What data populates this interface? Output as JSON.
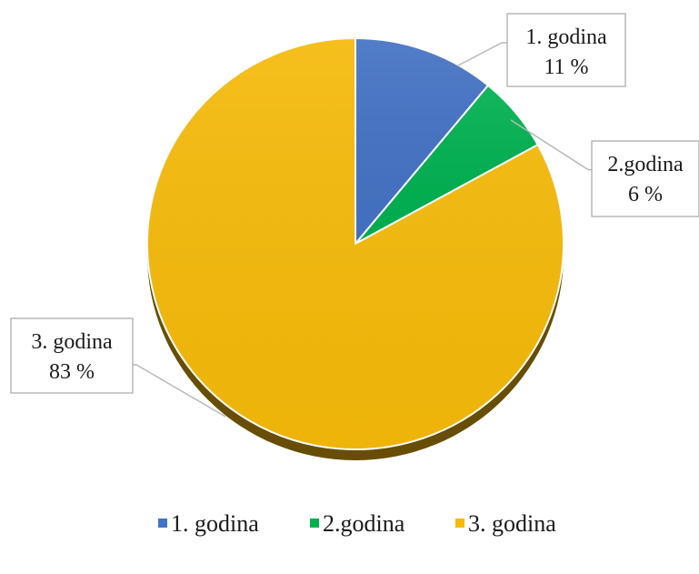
{
  "chart_data": {
    "type": "pie",
    "title": "",
    "slices": [
      {
        "label": "1. godina",
        "value": 11,
        "value_label": "11 %",
        "color": "#4472C4"
      },
      {
        "label": "2.godina",
        "value": 6,
        "value_label": "6 %",
        "color": "#00B050"
      },
      {
        "label": "3. godina",
        "value": 83,
        "value_label": "83 %",
        "color": "#F5BA0A"
      }
    ],
    "legend_position": "bottom",
    "start_angle": "12 o'clock",
    "direction": "clockwise",
    "style": "3d-tilted"
  }
}
